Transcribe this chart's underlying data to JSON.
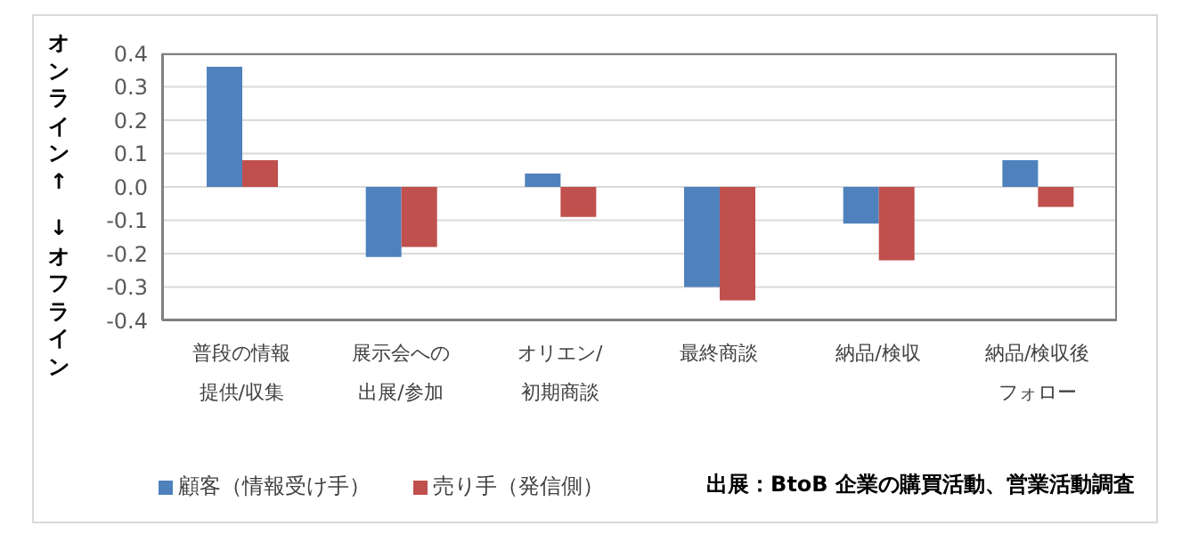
{
  "chart_data": {
    "type": "bar",
    "categories": [
      "普段の情報提供/収集",
      "展示会への出展/参加",
      "オリエン/初期商談",
      "最終商談",
      "納品/検収",
      "納品/検収後フォロー"
    ],
    "series": [
      {
        "name": "顧客（情報受け手）",
        "color": "#4f81bd",
        "values": [
          0.36,
          -0.21,
          0.04,
          -0.3,
          -0.11,
          0.08
        ]
      },
      {
        "name": "売り手（発信側）",
        "color": "#c0504d",
        "values": [
          0.08,
          -0.18,
          -0.09,
          -0.34,
          -0.22,
          -0.06
        ]
      }
    ],
    "ylim": [
      -0.4,
      0.4
    ],
    "yticks": [
      0.4,
      0.3,
      0.2,
      0.1,
      {
        "value": 0,
        "label": "0.0"
      },
      -0.1,
      -0.2,
      -0.3,
      -0.4
    ],
    "grid": "y",
    "legend": "bottom left",
    "annotations": [
      "オンライン↑",
      "↓オフライン",
      "出展：BtoB 企業の購買活動、営業活動調査"
    ]
  }
}
